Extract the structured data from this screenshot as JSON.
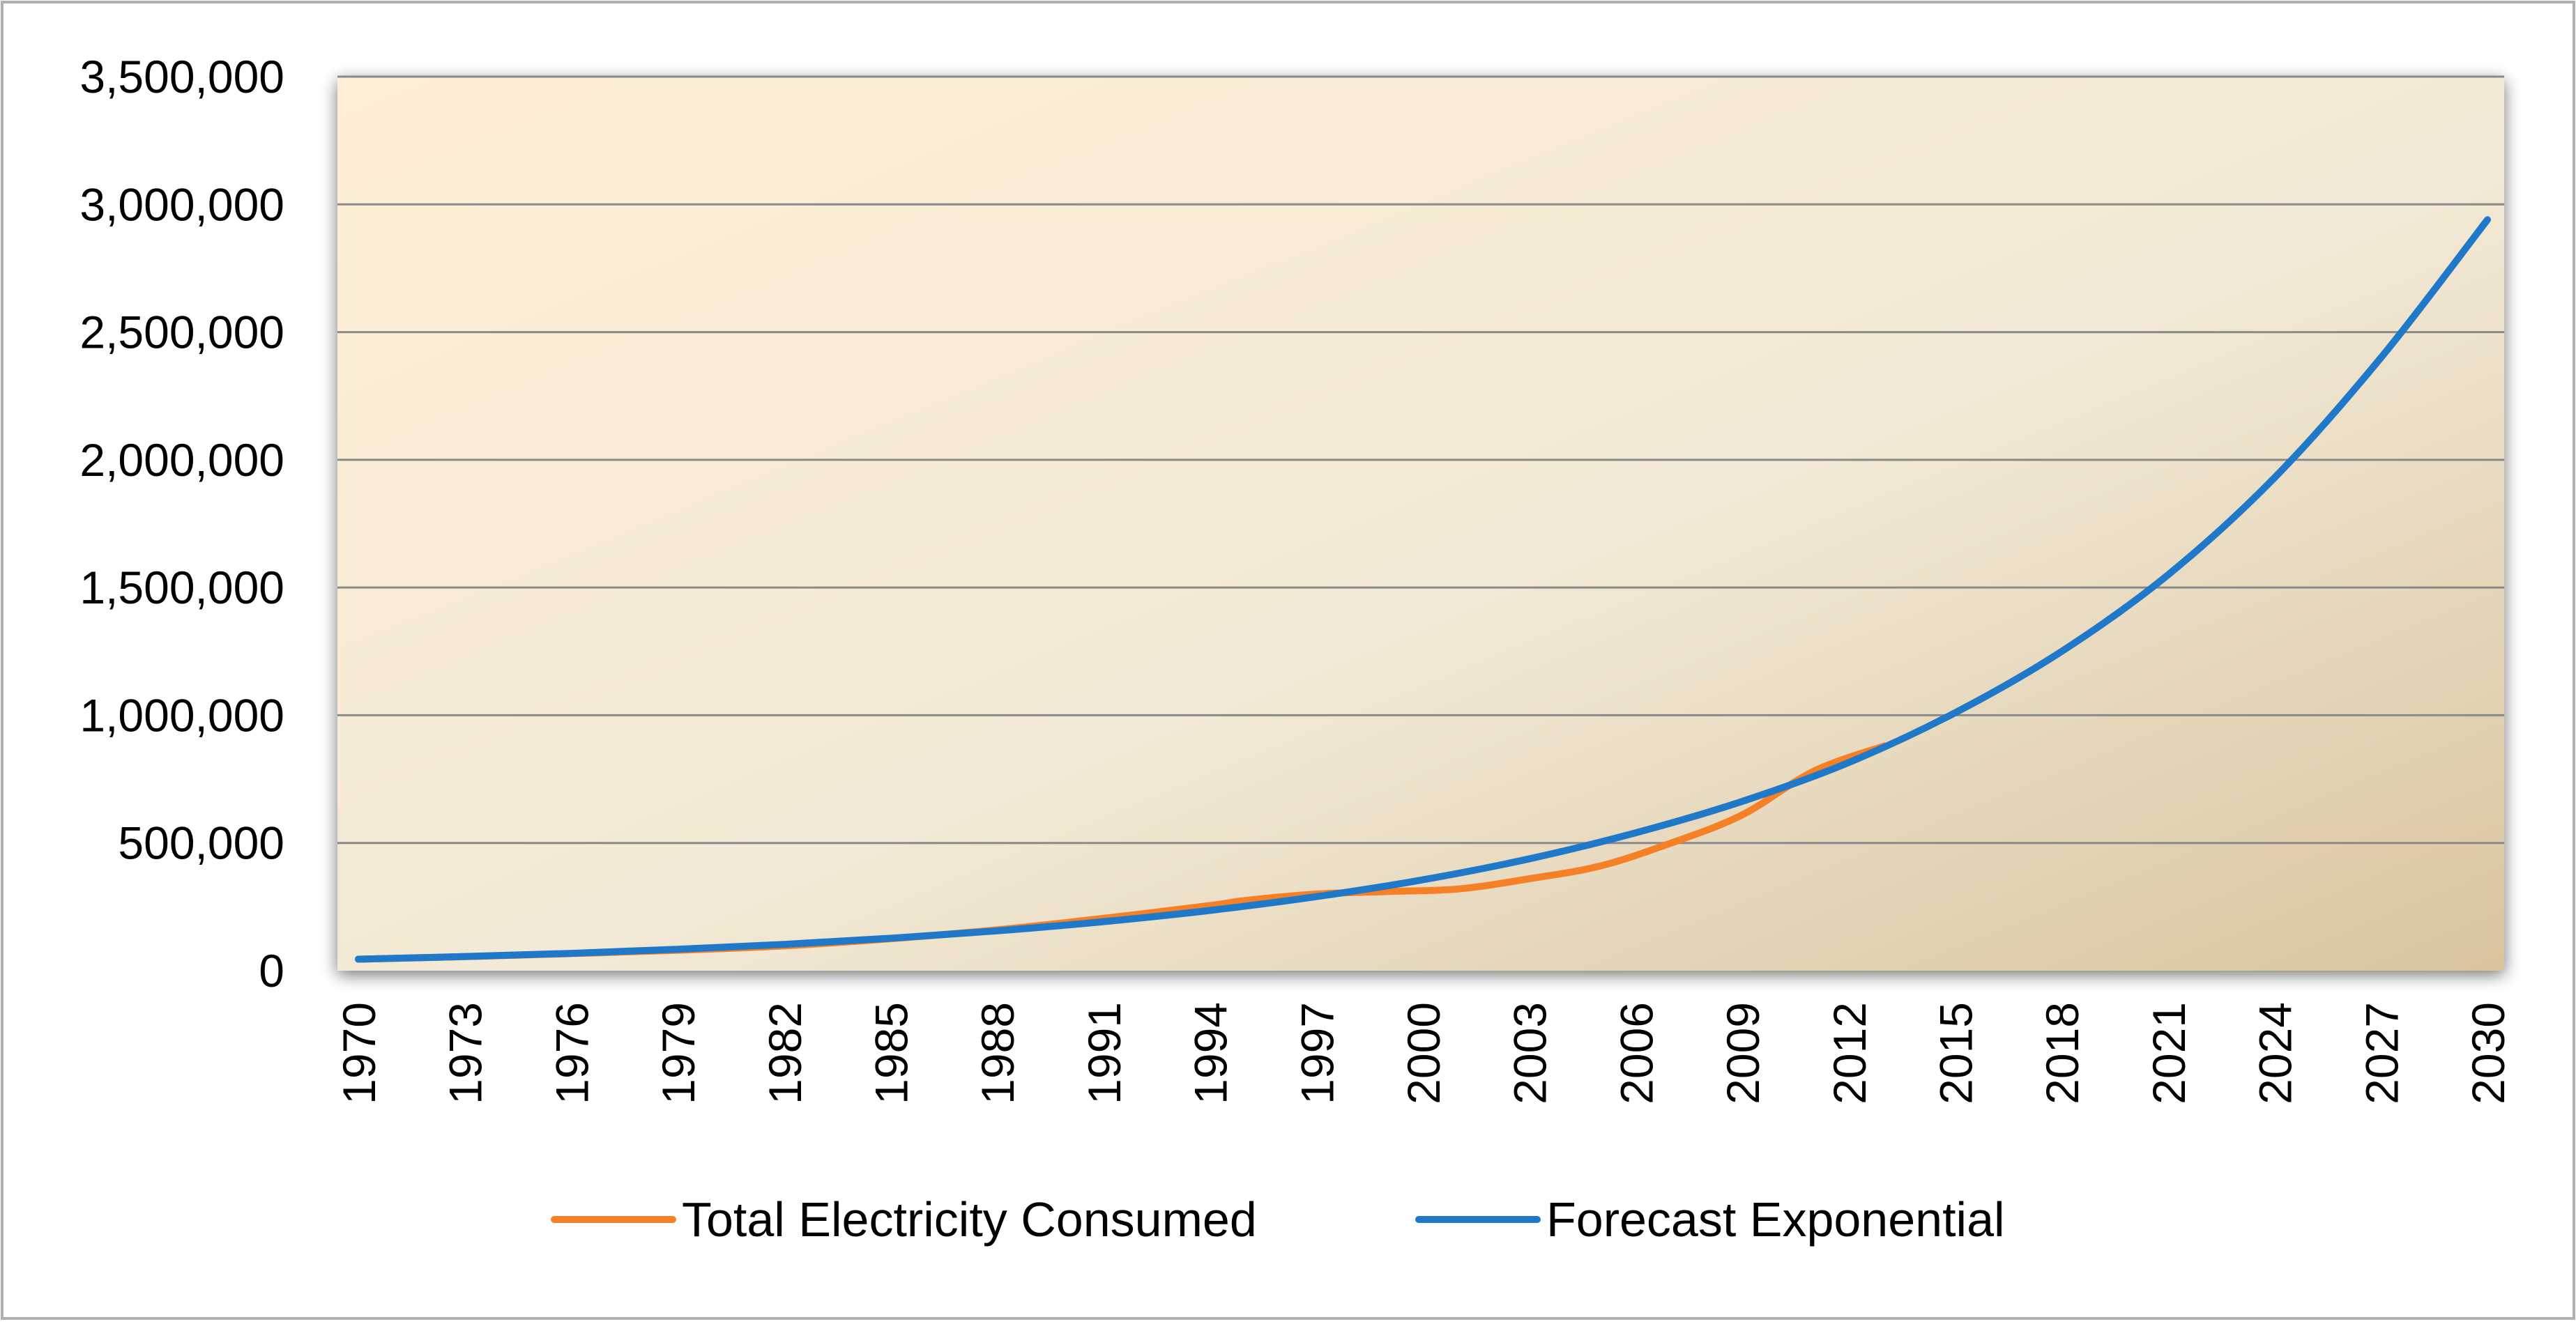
{
  "colors": {
    "series_actual": "#F58025",
    "series_forecast": "#1F78C8",
    "plot_bg_light": "#FFEFD6",
    "plot_bg_dark": "#D9C49E",
    "gridline": "#8A8A8A",
    "frame_border": "#B0B0B0"
  },
  "chart_data": {
    "type": "line",
    "title": "",
    "xlabel": "",
    "ylabel": "",
    "xlim": [
      1970,
      2030
    ],
    "ylim": [
      0,
      3500000
    ],
    "grid": true,
    "legend_position": "bottom",
    "x_ticks": [
      1970,
      1973,
      1976,
      1979,
      1982,
      1985,
      1988,
      1991,
      1994,
      1997,
      2000,
      2003,
      2006,
      2009,
      2012,
      2015,
      2018,
      2021,
      2024,
      2027,
      2030
    ],
    "x_tick_labels": [
      "1970",
      "1973",
      "1976",
      "1979",
      "1982",
      "1985",
      "1988",
      "1991",
      "1994",
      "1997",
      "2000",
      "2003",
      "2006",
      "2009",
      "2012",
      "2015",
      "2018",
      "2021",
      "2024",
      "2027",
      "2030"
    ],
    "y_ticks": [
      0,
      500000,
      1000000,
      1500000,
      2000000,
      2500000,
      3000000,
      3500000
    ],
    "y_tick_labels": [
      "0",
      "500,000",
      "1,000,000",
      "1,500,000",
      "2,000,000",
      "2,500,000",
      "3,000,000",
      "3,500,000"
    ],
    "series": [
      {
        "name": "Total Electricity Consumed",
        "x": [
          1970,
          1973,
          1976,
          1979,
          1982,
          1985,
          1988,
          1991,
          1994,
          1995,
          1997,
          1999,
          2001,
          2003,
          2005,
          2007,
          2009,
          2011,
          2013
        ],
        "values": [
          45000,
          55000,
          67000,
          80000,
          97000,
          125000,
          160000,
          205000,
          255000,
          275000,
          300000,
          310000,
          320000,
          360000,
          410000,
          500000,
          610000,
          780000,
          880000
        ]
      },
      {
        "name": "Forecast Exponential",
        "x": [
          1970,
          1973,
          1976,
          1979,
          1982,
          1985,
          1988,
          1991,
          1994,
          1997,
          2000,
          2003,
          2006,
          2009,
          2012,
          2015,
          2018,
          2021,
          2024,
          2027,
          2030
        ],
        "values": [
          45000,
          55500,
          68000,
          84000,
          103000,
          127000,
          156000,
          192000,
          236000,
          290000,
          356000,
          438000,
          540000,
          663000,
          815000,
          1010000,
          1250000,
          1550000,
          1930000,
          2400000,
          2940000
        ]
      }
    ]
  }
}
